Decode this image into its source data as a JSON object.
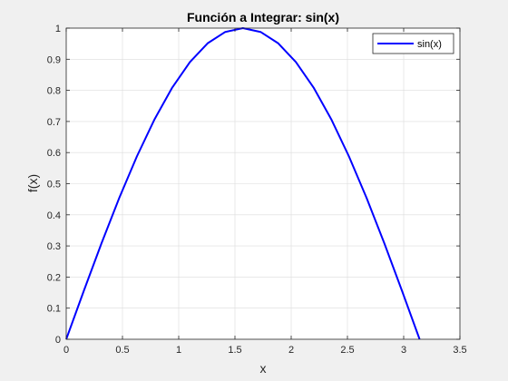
{
  "chart_data": {
    "type": "line",
    "title": "Función a Integrar: sin(x)",
    "xlabel": "x",
    "ylabel": "f(x)",
    "xlim": [
      0,
      3.5
    ],
    "ylim": [
      0,
      1
    ],
    "grid": true,
    "legend_position": "top-right",
    "x_ticks": [
      "0",
      "0.5",
      "1",
      "1.5",
      "2",
      "2.5",
      "3",
      "3.5"
    ],
    "y_ticks": [
      "0",
      "0.1",
      "0.2",
      "0.3",
      "0.4",
      "0.5",
      "0.6",
      "0.7",
      "0.8",
      "0.9",
      "1"
    ],
    "series": [
      {
        "name": "sin(x)",
        "color": "#0000ff",
        "x": [
          0,
          0.1571,
          0.3142,
          0.4712,
          0.6283,
          0.7854,
          0.9425,
          1.0996,
          1.2566,
          1.4137,
          1.5708,
          1.7279,
          1.885,
          2.042,
          2.1991,
          2.3562,
          2.5133,
          2.6704,
          2.8274,
          2.9845,
          3.1416
        ],
        "y": [
          0,
          0.1564,
          0.309,
          0.454,
          0.5878,
          0.7071,
          0.809,
          0.891,
          0.9511,
          0.9877,
          1,
          0.9877,
          0.9511,
          0.891,
          0.809,
          0.7071,
          0.5878,
          0.454,
          0.309,
          0.1564,
          0
        ]
      }
    ]
  }
}
